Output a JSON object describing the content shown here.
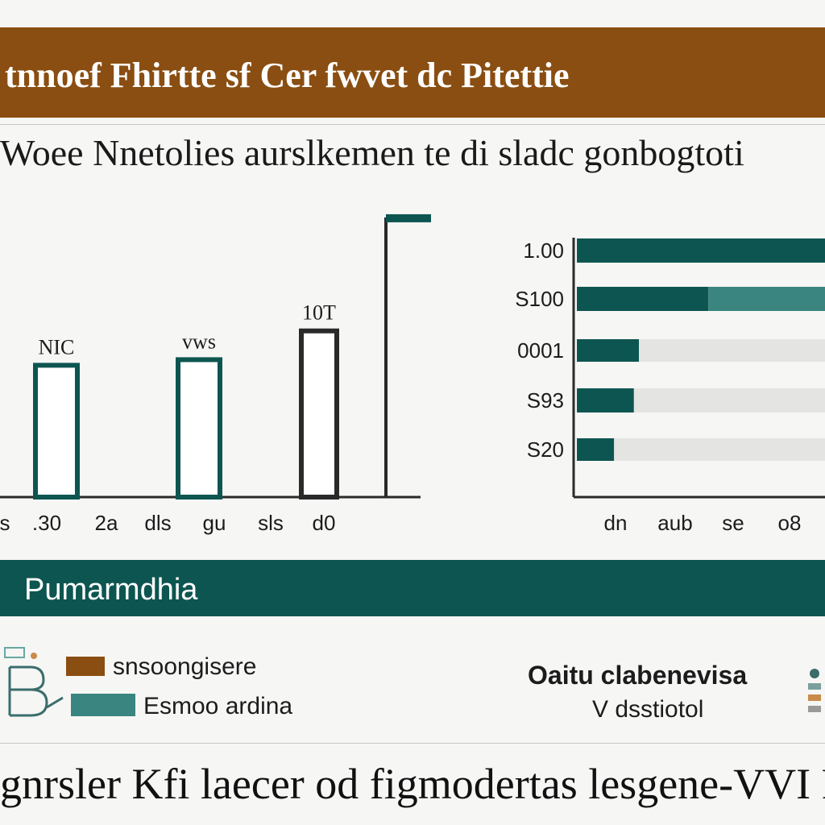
{
  "title": "tnnoef Fhirtte sf Cer fwvet dc Pitettie",
  "subtitle": "Woee Nnetolies aurslkemen te di sladc gonbogtoti",
  "colors": {
    "brown": "#8a4e12",
    "teal_dark": "#0d5550",
    "teal_mid": "#3a857f",
    "light_track": "#e4e4e2",
    "axis": "#2a2a2a"
  },
  "chart_data": [
    {
      "type": "bar",
      "orientation": "vertical",
      "categories": [
        "s",
        ".30",
        "2a",
        "dls",
        "gu",
        "sls",
        "d0"
      ],
      "bars": [
        {
          "value": 165,
          "label": "NIC"
        },
        {
          "value": 172,
          "label": "vws"
        },
        {
          "value": 208,
          "label": "10T"
        },
        {
          "value": 350,
          "label": ""
        }
      ],
      "ylim": [
        0,
        360
      ]
    },
    {
      "type": "bar",
      "orientation": "horizontal",
      "categories": [
        "1.00",
        "S100",
        "0001",
        "S93",
        "S20"
      ],
      "x_tick_labels": [
        "dn",
        "aub",
        "se",
        "o8"
      ],
      "series": [
        {
          "values": [
            100,
            53,
            25,
            23,
            15
          ]
        },
        {
          "values": [
            0,
            47,
            75,
            77,
            85
          ]
        }
      ],
      "xlim": [
        0,
        100
      ]
    }
  ],
  "panel": {
    "title": "Pumarmdhia"
  },
  "legend": [
    {
      "label": "snsoongisere",
      "color": "#8a4e12"
    },
    {
      "label": "Esmoo ardina",
      "color": "#3a857f"
    }
  ],
  "note": {
    "heading": "Oaitu clabenevisa",
    "sub": "V dsstiotol"
  },
  "footer": "gnrsler Kfi laecer od figmodertas lesgene-VVI F"
}
